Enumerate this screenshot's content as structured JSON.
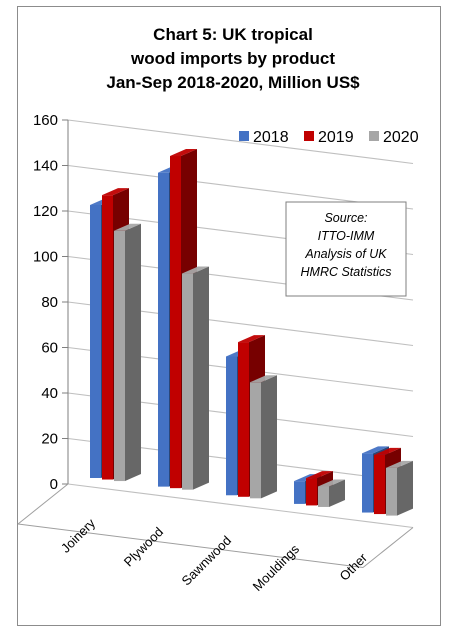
{
  "chart_data": {
    "type": "bar",
    "title_lines": [
      "Chart 5: UK tropical",
      "wood imports by product",
      "Jan-Sep 2018-2020, Million US$"
    ],
    "categories": [
      "Joinery",
      "Plywood",
      "Sawnwood",
      "Mouldings",
      "Other"
    ],
    "series": [
      {
        "name": "2018",
        "color": "#4472c4",
        "values": [
          120,
          138,
          61,
          10,
          26
        ]
      },
      {
        "name": "2019",
        "color": "#c00000",
        "values": [
          125,
          146,
          68,
          12,
          26
        ]
      },
      {
        "name": "2020",
        "color": "#a6a6a6",
        "values": [
          110,
          95,
          51,
          9,
          21
        ]
      }
    ],
    "ylim": [
      0,
      160
    ],
    "yticks": [
      "0",
      "20",
      "40",
      "60",
      "80",
      "100",
      "120",
      "140",
      "160"
    ],
    "grid": true,
    "legend": "top-right",
    "annotation_lines": [
      "Source:",
      "ITTO-IMM",
      "Analysis of UK",
      "HMRC Statistics"
    ]
  }
}
